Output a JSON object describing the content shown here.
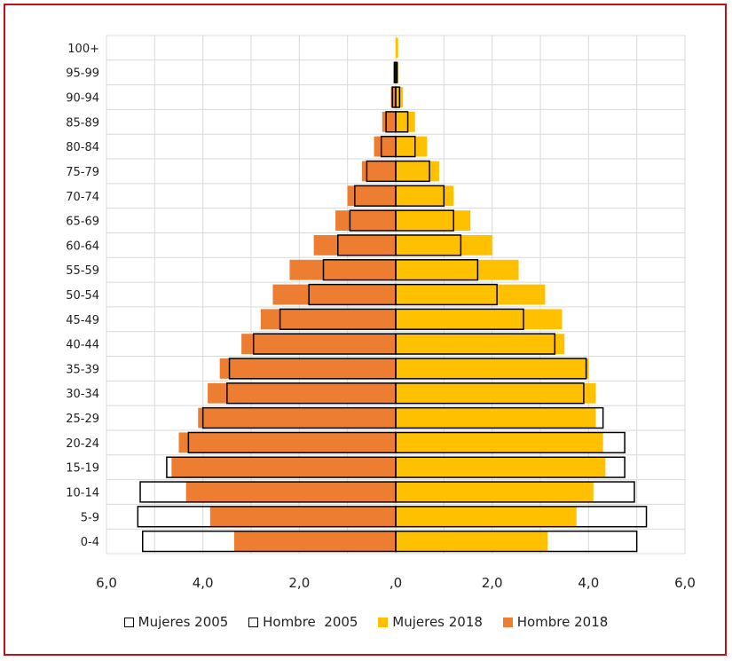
{
  "chart_data": {
    "type": "bar",
    "orientation": "horizontal-population-pyramid",
    "categories": [
      "0-4",
      "5-9",
      "10-14",
      "15-19",
      "20-24",
      "25-29",
      "30-34",
      "35-39",
      "40-44",
      "45-49",
      "50-54",
      "55-59",
      "60-64",
      "65-69",
      "70-74",
      "75-79",
      "80-84",
      "85-89",
      "90-94",
      "95-99",
      "100+"
    ],
    "series": [
      {
        "name": "Mujeres 2005",
        "side": "right",
        "style": "outline",
        "color": "#000000",
        "values": [
          5.0,
          5.2,
          4.95,
          4.75,
          4.75,
          4.3,
          3.9,
          3.95,
          3.3,
          2.65,
          2.1,
          1.7,
          1.35,
          1.2,
          1.0,
          0.7,
          0.4,
          0.25,
          0.08,
          0.03,
          0.0
        ]
      },
      {
        "name": "Hombre  2005",
        "side": "left",
        "style": "outline",
        "color": "#000000",
        "values": [
          5.25,
          5.35,
          5.3,
          4.75,
          4.3,
          4.0,
          3.5,
          3.45,
          2.95,
          2.4,
          1.8,
          1.5,
          1.2,
          0.95,
          0.85,
          0.6,
          0.3,
          0.2,
          0.07,
          0.03,
          0.0
        ]
      },
      {
        "name": "Mujeres 2018",
        "side": "right",
        "style": "fill",
        "color": "#ffc000",
        "values": [
          3.15,
          3.75,
          4.1,
          4.35,
          4.3,
          4.15,
          4.15,
          4.0,
          3.5,
          3.45,
          3.1,
          2.55,
          2.0,
          1.55,
          1.2,
          0.9,
          0.65,
          0.4,
          0.15,
          0.05,
          0.05
        ]
      },
      {
        "name": "Hombre 2018",
        "side": "left",
        "style": "fill",
        "color": "#ed7d31",
        "values": [
          3.35,
          3.85,
          4.35,
          4.65,
          4.5,
          4.1,
          3.9,
          3.65,
          3.2,
          2.8,
          2.55,
          2.2,
          1.7,
          1.25,
          1.0,
          0.7,
          0.45,
          0.28,
          0.1,
          0.03,
          0.0
        ]
      }
    ],
    "xlim": [
      -6,
      6
    ],
    "x_tick_values": [
      -6,
      -4,
      -2,
      0,
      2,
      4,
      6
    ],
    "x_tick_labels": [
      "6,0",
      "4,0",
      "2,0",
      ",0",
      "2,0",
      "4,0",
      "6,0"
    ],
    "grid": true,
    "legend_position": "bottom",
    "title": "",
    "xlabel": "",
    "ylabel": ""
  }
}
